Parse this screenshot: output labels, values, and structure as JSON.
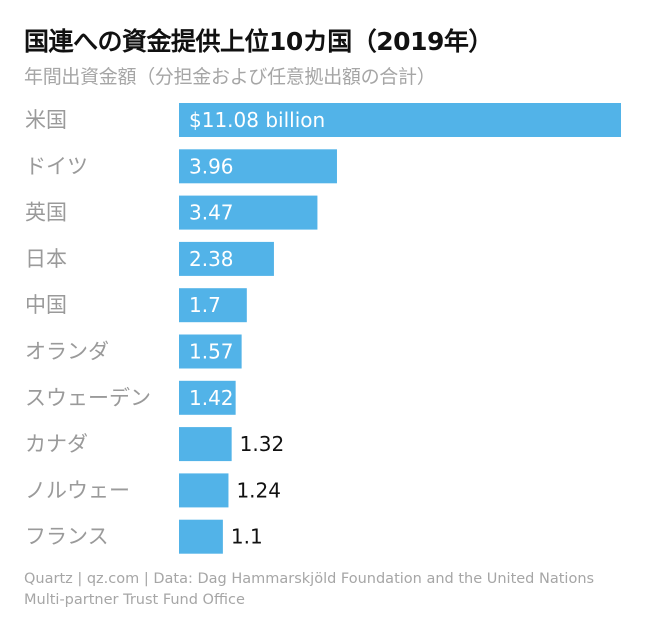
{
  "chart_data": {
    "type": "bar",
    "orientation": "horizontal",
    "title": "国連への資金提供上位10カ国（2019年）",
    "subtitle": "年間出資金額（分担金および任意拠出額の合計）",
    "categories": [
      "米国",
      "ドイツ",
      "英国",
      "日本",
      "中国",
      "オランダ",
      "スウェーデン",
      "カナダ",
      "ノルウェー",
      "フランス"
    ],
    "values": [
      11.08,
      3.96,
      3.47,
      2.38,
      1.7,
      1.57,
      1.42,
      1.32,
      1.24,
      1.1
    ],
    "value_labels": [
      "$11.08 billion",
      "3.96",
      "3.47",
      "2.38",
      "1.7",
      "1.57",
      "1.42",
      "1.32",
      "1.24",
      "1.1"
    ],
    "xlim": [
      0,
      11.08
    ],
    "unit": "USD billion",
    "grid": false,
    "legend": "none"
  },
  "source": {
    "line1": "Quartz | qz.com | Data: Dag Hammarskjöld Foundation and the United Nations",
    "line2": "Multi-partner Trust Fund Office"
  },
  "colors": {
    "bar": "#52b3e8",
    "label_inside": "#ffffff",
    "label_outside": "#111111",
    "category": "#9a9a9a"
  }
}
